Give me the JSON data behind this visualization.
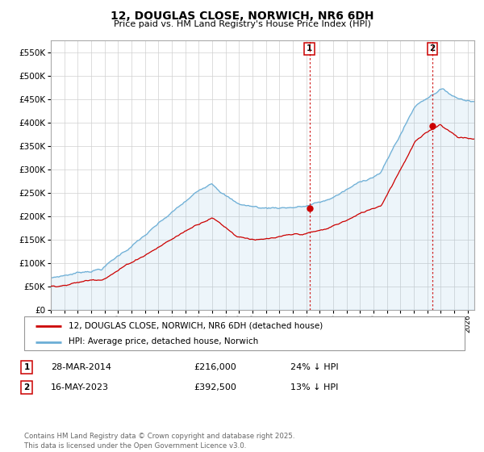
{
  "title": "12, DOUGLAS CLOSE, NORWICH, NR6 6DH",
  "subtitle": "Price paid vs. HM Land Registry's House Price Index (HPI)",
  "ylim": [
    0,
    575000
  ],
  "yticks": [
    0,
    50000,
    100000,
    150000,
    200000,
    250000,
    300000,
    350000,
    400000,
    450000,
    500000,
    550000
  ],
  "xlim_start": 1995.0,
  "xlim_end": 2026.5,
  "hpi_color": "#6baed6",
  "price_color": "#cc0000",
  "vline_color": "#cc0000",
  "marker1_x": 2014.24,
  "marker1_y": 216000,
  "marker1_label": "1",
  "marker2_x": 2023.37,
  "marker2_y": 392500,
  "marker2_label": "2",
  "legend_line1": "12, DOUGLAS CLOSE, NORWICH, NR6 6DH (detached house)",
  "legend_line2": "HPI: Average price, detached house, Norwich",
  "table_row1_num": "1",
  "table_row1_date": "28-MAR-2014",
  "table_row1_price": "£216,000",
  "table_row1_hpi": "24% ↓ HPI",
  "table_row2_num": "2",
  "table_row2_date": "16-MAY-2023",
  "table_row2_price": "£392,500",
  "table_row2_hpi": "13% ↓ HPI",
  "footnote": "Contains HM Land Registry data © Crown copyright and database right 2025.\nThis data is licensed under the Open Government Licence v3.0.",
  "background_color": "#ffffff",
  "grid_color": "#d0d0d0"
}
